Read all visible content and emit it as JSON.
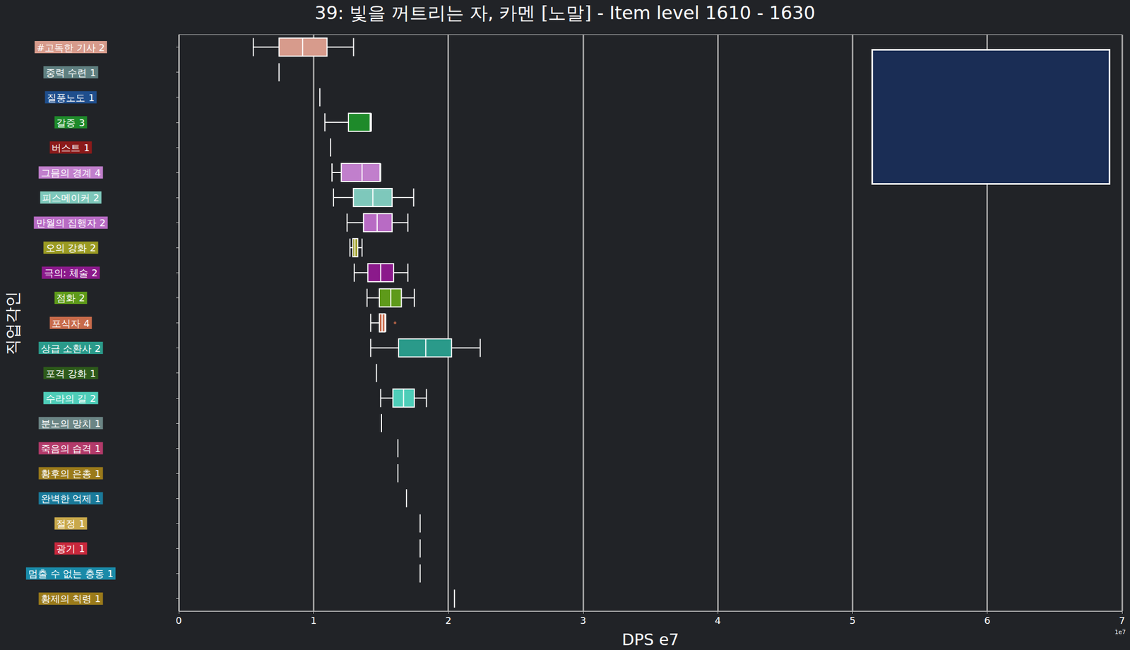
{
  "chart_data": {
    "type": "boxplot",
    "title": "39: 빛을 꺼트리는 자, 카멘 [노말] - Item level 1610 - 1630",
    "xlabel": "DPS e7",
    "ylabel": "직업각인",
    "x_offset_label": "1e7",
    "orientation": "horizontal",
    "grid": true,
    "xlim": [
      0,
      7
    ],
    "xticks": [
      0,
      1,
      2,
      3,
      4,
      5,
      6,
      7
    ],
    "categories": [
      "#고독한 기사 2",
      "중력 수련 1",
      "질풍노도 1",
      "갈증 3",
      "버스트 1",
      "그믐의 경계 4",
      "피스메이커 2",
      "만월의 집행자 2",
      "오의 강화 2",
      "극의: 체술 2",
      "점화 2",
      "포식자 4",
      "상급 소환사 2",
      "포격 강화 1",
      "수라의 길 2",
      "분노의 망치 1",
      "죽음의 습격 1",
      "황후의 은총 1",
      "완벽한 억제 1",
      "절정 1",
      "광기 1",
      "멈출 수 없는 충동 1",
      "황제의 칙령 1"
    ],
    "values": [
      [
        0.553,
        0.744,
        0.919,
        1.1,
        1.297
      ],
      [
        0.744,
        0.744,
        0.744,
        0.744,
        0.744
      ],
      [
        1.047,
        1.047,
        1.047,
        1.047,
        1.047
      ],
      [
        1.084,
        1.259,
        1.42,
        1.424,
        1.429
      ],
      [
        1.126,
        1.126,
        1.126,
        1.126,
        1.126
      ],
      [
        1.137,
        1.206,
        1.36,
        1.493,
        1.498
      ],
      [
        1.148,
        1.296,
        1.44,
        1.583,
        1.743
      ],
      [
        1.249,
        1.371,
        1.472,
        1.583,
        1.7
      ],
      [
        1.27,
        1.291,
        1.307,
        1.328,
        1.36
      ],
      [
        1.302,
        1.403,
        1.498,
        1.594,
        1.7
      ],
      [
        1.397,
        1.488,
        1.573,
        1.652,
        1.748
      ],
      [
        1.424,
        1.488,
        1.509,
        1.53,
        1.536
      ],
      [
        1.424,
        1.631,
        1.833,
        2.024,
        2.237
      ],
      [
        1.467,
        1.467,
        1.467,
        1.467,
        1.467
      ],
      [
        1.498,
        1.589,
        1.668,
        1.748,
        1.838
      ],
      [
        1.504,
        1.504,
        1.504,
        1.504,
        1.504
      ],
      [
        1.626,
        1.626,
        1.626,
        1.626,
        1.626
      ],
      [
        1.626,
        1.626,
        1.626,
        1.626,
        1.626
      ],
      [
        1.69,
        1.69,
        1.69,
        1.69,
        1.69
      ],
      [
        1.791,
        1.791,
        1.791,
        1.791,
        1.791
      ],
      [
        1.791,
        1.791,
        1.791,
        1.791,
        1.791
      ],
      [
        1.791,
        1.791,
        1.791,
        1.791,
        1.791
      ],
      [
        2.046,
        2.046,
        2.046,
        2.046,
        2.046
      ]
    ],
    "colors": [
      "#d79b8c",
      "#5f7f80",
      "#1f4e8c",
      "#1e8a2a",
      "#8b1a1a",
      "#c17fcc",
      "#7ec8bb",
      "#b86bc4",
      "#9a9a22",
      "#8b1a8b",
      "#5e9a1a",
      "#c86b4b",
      "#2a9a8a",
      "#2d5a1a",
      "#4ecdb8",
      "#6b8585",
      "#b33a6a",
      "#9a7a1a",
      "#1a7a9a",
      "#c8a84b",
      "#c8283c",
      "#1a8aa8",
      "#9a7a1a"
    ],
    "outliers": [
      {
        "category": "포식자 4",
        "value": 1.605
      }
    ]
  }
}
